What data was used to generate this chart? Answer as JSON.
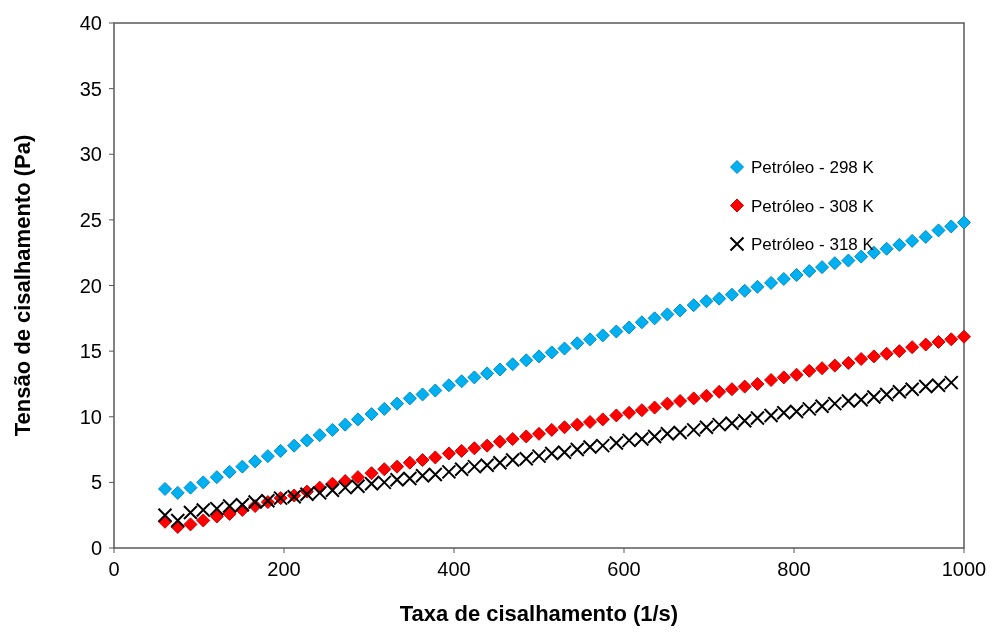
{
  "chart_data": {
    "type": "scatter",
    "xlabel": "Taxa de cisalhamento (1/s)",
    "ylabel": "Tensão de cisalhamento (Pa)",
    "x": [
      60,
      75,
      90,
      105,
      121,
      136,
      151,
      166,
      181,
      196,
      212,
      227,
      242,
      257,
      272,
      287,
      303,
      318,
      333,
      348,
      363,
      378,
      394,
      409,
      424,
      439,
      454,
      469,
      485,
      500,
      515,
      530,
      545,
      560,
      575,
      591,
      606,
      621,
      636,
      651,
      666,
      682,
      697,
      712,
      727,
      742,
      757,
      773,
      788,
      803,
      818,
      833,
      848,
      864,
      879,
      894,
      909,
      924,
      939,
      955,
      970,
      985,
      1000
    ],
    "series": [
      {
        "name": "Petróleo - 298 K",
        "color": "#00b0f0",
        "marker": "diamond",
        "values": [
          4.5,
          4.2,
          4.6,
          5.0,
          5.4,
          5.8,
          6.2,
          6.6,
          7.0,
          7.4,
          7.8,
          8.2,
          8.6,
          9.0,
          9.4,
          9.8,
          10.2,
          10.6,
          11.0,
          11.4,
          11.7,
          12.0,
          12.4,
          12.7,
          13.0,
          13.3,
          13.6,
          14.0,
          14.3,
          14.6,
          14.9,
          15.2,
          15.6,
          15.9,
          16.2,
          16.5,
          16.8,
          17.2,
          17.5,
          17.8,
          18.1,
          18.5,
          18.8,
          19.0,
          19.3,
          19.6,
          19.9,
          20.2,
          20.5,
          20.8,
          21.1,
          21.4,
          21.7,
          21.9,
          22.2,
          22.5,
          22.8,
          23.1,
          23.4,
          23.7,
          24.2,
          24.5,
          24.8
        ]
      },
      {
        "name": "Petróleo - 308 K",
        "color": "#ff0000",
        "marker": "diamond",
        "values": [
          2.0,
          1.6,
          1.8,
          2.1,
          2.4,
          2.6,
          2.9,
          3.2,
          3.5,
          3.8,
          4.0,
          4.3,
          4.6,
          4.9,
          5.1,
          5.4,
          5.7,
          6.0,
          6.2,
          6.5,
          6.7,
          6.9,
          7.2,
          7.4,
          7.6,
          7.8,
          8.1,
          8.3,
          8.5,
          8.7,
          9.0,
          9.2,
          9.4,
          9.6,
          9.8,
          10.1,
          10.3,
          10.5,
          10.7,
          11.0,
          11.2,
          11.4,
          11.6,
          11.9,
          12.1,
          12.3,
          12.5,
          12.8,
          13.0,
          13.2,
          13.5,
          13.7,
          13.9,
          14.1,
          14.4,
          14.6,
          14.8,
          15.0,
          15.3,
          15.5,
          15.7,
          15.9,
          16.1
        ]
      },
      {
        "name": "Petróleo - 318 K",
        "color": "#000000",
        "marker": "cross",
        "x": [
          60,
          75,
          90,
          105,
          121,
          136,
          151,
          166,
          181,
          196,
          212,
          227,
          242,
          257,
          272,
          287,
          303,
          318,
          333,
          348,
          363,
          378,
          394,
          409,
          424,
          439,
          454,
          469,
          485,
          500,
          515,
          530,
          545,
          560,
          575,
          591,
          606,
          621,
          636,
          651,
          666,
          682,
          697,
          712,
          727,
          742,
          757,
          773,
          788,
          803,
          818,
          833,
          848,
          864,
          879,
          894,
          909,
          924,
          939,
          955,
          970,
          985
        ],
        "values": [
          2.5,
          2.1,
          2.7,
          2.9,
          3.0,
          3.2,
          3.3,
          3.5,
          3.6,
          3.8,
          3.9,
          4.1,
          4.2,
          4.4,
          4.6,
          4.7,
          4.9,
          5.0,
          5.2,
          5.3,
          5.5,
          5.6,
          5.8,
          6.0,
          6.2,
          6.3,
          6.5,
          6.7,
          6.8,
          7.0,
          7.2,
          7.3,
          7.5,
          7.7,
          7.8,
          8.0,
          8.2,
          8.3,
          8.5,
          8.7,
          8.8,
          9.0,
          9.2,
          9.4,
          9.5,
          9.7,
          9.9,
          10.1,
          10.3,
          10.4,
          10.6,
          10.8,
          11.0,
          11.2,
          11.3,
          11.5,
          11.7,
          11.9,
          12.1,
          12.3,
          12.4,
          12.6
        ]
      }
    ],
    "xlim": [
      0,
      1000
    ],
    "xticks": [
      0,
      200,
      400,
      600,
      800,
      1000
    ],
    "ylim": [
      0,
      40
    ],
    "yticks": [
      0,
      5,
      10,
      15,
      20,
      25,
      30,
      35,
      40
    ],
    "grid": false,
    "legend": "top right"
  }
}
